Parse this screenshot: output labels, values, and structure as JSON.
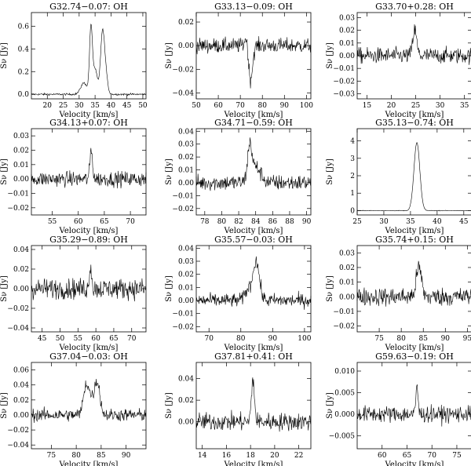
{
  "figure": {
    "xlabel": "Velocity [km/s]",
    "ylabel": "Sν [Jy]"
  },
  "chart_data": [
    {
      "type": "line",
      "title": "G32.74−0.07: OH",
      "xlim": [
        15,
        51
      ],
      "ylim": [
        -0.04,
        0.72
      ],
      "xticks": [
        20,
        25,
        30,
        35,
        40,
        45,
        50
      ],
      "yticks": [
        0.0,
        0.2,
        0.4,
        0.6
      ],
      "ytick_labels": [
        "0.0",
        "0.2",
        "0.4",
        "0.6"
      ],
      "series": [
        {
          "noise": 0.008,
          "peaks": [
            [
              31.5,
              0.1,
              1.0
            ],
            [
              33.7,
              0.57,
              0.45
            ],
            [
              35.0,
              0.22,
              0.7
            ],
            [
              37.3,
              0.52,
              0.6
            ],
            [
              38.3,
              0.18,
              0.6
            ]
          ]
        }
      ]
    },
    {
      "type": "line",
      "title": "G33.13−0.09: OH",
      "xlim": [
        50,
        102
      ],
      "ylim": [
        -0.045,
        0.028
      ],
      "xticks": [
        50,
        60,
        70,
        80,
        90,
        100
      ],
      "yticks": [
        -0.04,
        -0.02,
        0.0,
        0.02
      ],
      "ytick_labels": [
        "−0.04",
        "−0.02",
        "0.00",
        "0.02"
      ],
      "series": [
        {
          "noise": 0.006,
          "peaks": [
            [
              74.5,
              -0.03,
              1.0
            ],
            [
              73.0,
              0.012,
              0.8
            ]
          ]
        }
      ]
    },
    {
      "type": "line",
      "title": "G33.70+0.28: OH",
      "xlim": [
        13,
        36.5
      ],
      "ylim": [
        -0.034,
        0.034
      ],
      "xticks": [
        15,
        20,
        25,
        30,
        35
      ],
      "yticks": [
        -0.03,
        -0.02,
        -0.01,
        0.0,
        0.01,
        0.02,
        0.03
      ],
      "ytick_labels": [
        "−0.03",
        "−0.02",
        "−0.01",
        "0.00",
        "0.01",
        "0.02",
        "0.03"
      ],
      "series": [
        {
          "noise": 0.006,
          "peaks": [
            [
              24.8,
              0.02,
              0.4
            ]
          ]
        }
      ]
    },
    {
      "type": "line",
      "title": "G34.13+0.07: OH",
      "xlim": [
        51,
        73
      ],
      "ylim": [
        -0.025,
        0.035
      ],
      "xticks": [
        55,
        60,
        65,
        70
      ],
      "yticks": [
        -0.02,
        -0.01,
        0.0,
        0.01,
        0.02,
        0.03
      ],
      "ytick_labels": [
        "−0.02",
        "−0.01",
        "0.00",
        "0.01",
        "0.02",
        "0.03"
      ],
      "series": [
        {
          "noise": 0.005,
          "peaks": [
            [
              62.5,
              0.02,
              0.25
            ]
          ]
        }
      ]
    },
    {
      "type": "line",
      "title": "G34.71−0.59: OH",
      "xlim": [
        77,
        90.5
      ],
      "ylim": [
        -0.025,
        0.042
      ],
      "xticks": [
        78,
        80,
        82,
        84,
        86,
        88,
        90
      ],
      "yticks": [
        -0.02,
        -0.01,
        0.0,
        0.01,
        0.02,
        0.03,
        0.04
      ],
      "ytick_labels": [
        "−0.02",
        "−0.01",
        "0.00",
        "0.01",
        "0.02",
        "0.03",
        "0.04"
      ],
      "series": [
        {
          "noise": 0.006,
          "peaks": [
            [
              83.3,
              0.025,
              0.25
            ],
            [
              84.0,
              0.012,
              0.6
            ]
          ]
        }
      ]
    },
    {
      "type": "line",
      "title": "G35.13−0.74: OH",
      "xlim": [
        25,
        46.5
      ],
      "ylim": [
        -0.25,
        4.7
      ],
      "xticks": [
        25,
        30,
        35,
        40,
        45
      ],
      "yticks": [
        0,
        1,
        2,
        3,
        4
      ],
      "ytick_labels": [
        "0",
        "1",
        "2",
        "3",
        "4"
      ],
      "series": [
        {
          "noise": 0.015,
          "peaks": [
            [
              36.2,
              3.9,
              0.55
            ]
          ]
        }
      ]
    },
    {
      "type": "line",
      "title": "G35.29−0.89: OH",
      "xlim": [
        42,
        74
      ],
      "ylim": [
        -0.044,
        0.044
      ],
      "xticks": [
        45,
        50,
        55,
        60,
        65,
        70
      ],
      "yticks": [
        -0.04,
        -0.02,
        0.0,
        0.02,
        0.04
      ],
      "ytick_labels": [
        "−0.04",
        "−0.02",
        "0.00",
        "0.02",
        "0.04"
      ],
      "series": [
        {
          "noise": 0.01,
          "peaks": [
            [
              58.5,
              0.025,
              0.3
            ]
          ]
        }
      ]
    },
    {
      "type": "line",
      "title": "G35.57−0.03: OH",
      "xlim": [
        66,
        102
      ],
      "ylim": [
        -0.024,
        0.042
      ],
      "xticks": [
        70,
        80,
        90,
        100
      ],
      "yticks": [
        -0.02,
        -0.01,
        0.0,
        0.01,
        0.02,
        0.03,
        0.04
      ],
      "ytick_labels": [
        "−0.02",
        "−0.01",
        "0.00",
        "0.01",
        "0.02",
        "0.03",
        "0.04"
      ],
      "series": [
        {
          "noise": 0.005,
          "peaks": [
            [
              84.8,
              0.03,
              1.0
            ],
            [
              82.3,
              0.008,
              1.0
            ]
          ]
        }
      ]
    },
    {
      "type": "line",
      "title": "G35.74+0.15: OH",
      "xlim": [
        70,
        96
      ],
      "ylim": [
        -0.024,
        0.035
      ],
      "xticks": [
        75,
        80,
        85,
        90,
        95
      ],
      "yticks": [
        -0.02,
        -0.01,
        0.0,
        0.01,
        0.02,
        0.03
      ],
      "ytick_labels": [
        "−0.02",
        "−0.01",
        "0.00",
        "0.01",
        "0.02",
        "0.03"
      ],
      "series": [
        {
          "noise": 0.006,
          "peaks": [
            [
              84.0,
              0.02,
              0.6
            ]
          ]
        }
      ]
    },
    {
      "type": "line",
      "title": "G37.04−0.03: OH",
      "xlim": [
        71,
        94
      ],
      "ylim": [
        -0.045,
        0.07
      ],
      "xticks": [
        75,
        80,
        85,
        90
      ],
      "yticks": [
        -0.04,
        -0.02,
        0.0,
        0.02,
        0.04,
        0.06
      ],
      "ytick_labels": [
        "−0.04",
        "−0.02",
        "0.00",
        "0.02",
        "0.04",
        "0.06"
      ],
      "series": [
        {
          "noise": 0.008,
          "peaks": [
            [
              82.0,
              0.04,
              0.55
            ],
            [
              84.2,
              0.045,
              0.55
            ],
            [
              83.0,
              0.015,
              0.5
            ]
          ]
        }
      ]
    },
    {
      "type": "line",
      "title": "G37.81+0.41: OH",
      "xlim": [
        13.5,
        23
      ],
      "ylim": [
        -0.025,
        0.055
      ],
      "xticks": [
        14,
        16,
        18,
        20,
        22
      ],
      "yticks": [
        0.0,
        0.02,
        0.04
      ],
      "ytick_labels": [
        "0.00",
        "0.02",
        "0.04"
      ],
      "series": [
        {
          "noise": 0.008,
          "peaks": [
            [
              18.2,
              0.04,
              0.12
            ]
          ]
        }
      ]
    },
    {
      "type": "line",
      "title": "G59.63−0.19: OH",
      "xlim": [
        55,
        78
      ],
      "ylim": [
        -0.008,
        0.012
      ],
      "xticks": [
        60,
        65,
        70,
        75
      ],
      "yticks": [
        -0.005,
        0.0,
        0.005,
        0.01
      ],
      "ytick_labels": [
        "−0.005",
        "0.000",
        "0.005",
        "0.010"
      ],
      "series": [
        {
          "noise": 0.0018,
          "peaks": [
            [
              67.0,
              0.007,
              0.2
            ]
          ]
        }
      ]
    }
  ]
}
